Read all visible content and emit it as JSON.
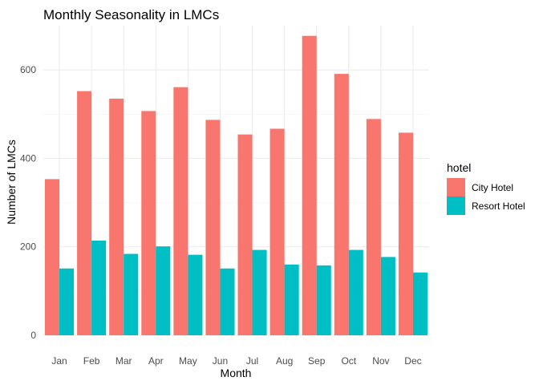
{
  "chart_data": {
    "type": "bar",
    "title": "Monthly Seasonality in LMCs",
    "xlabel": "Month",
    "ylabel": "Number of LMCs",
    "categories": [
      "Jan",
      "Feb",
      "Mar",
      "Apr",
      "May",
      "Jun",
      "Jul",
      "Aug",
      "Sep",
      "Oct",
      "Nov",
      "Dec"
    ],
    "series": [
      {
        "name": "City Hotel",
        "color": "#F8766D",
        "values": [
          353,
          552,
          535,
          507,
          561,
          487,
          454,
          467,
          677,
          591,
          489,
          458
        ]
      },
      {
        "name": "Resort Hotel",
        "color": "#00BFC4",
        "values": [
          151,
          214,
          184,
          201,
          182,
          151,
          193,
          160,
          158,
          193,
          177,
          142
        ]
      }
    ],
    "ylim": [
      0,
      700
    ],
    "yticks": [
      0,
      200,
      400,
      600
    ],
    "grid": true,
    "legend": {
      "title": "hotel",
      "position": "right"
    }
  }
}
